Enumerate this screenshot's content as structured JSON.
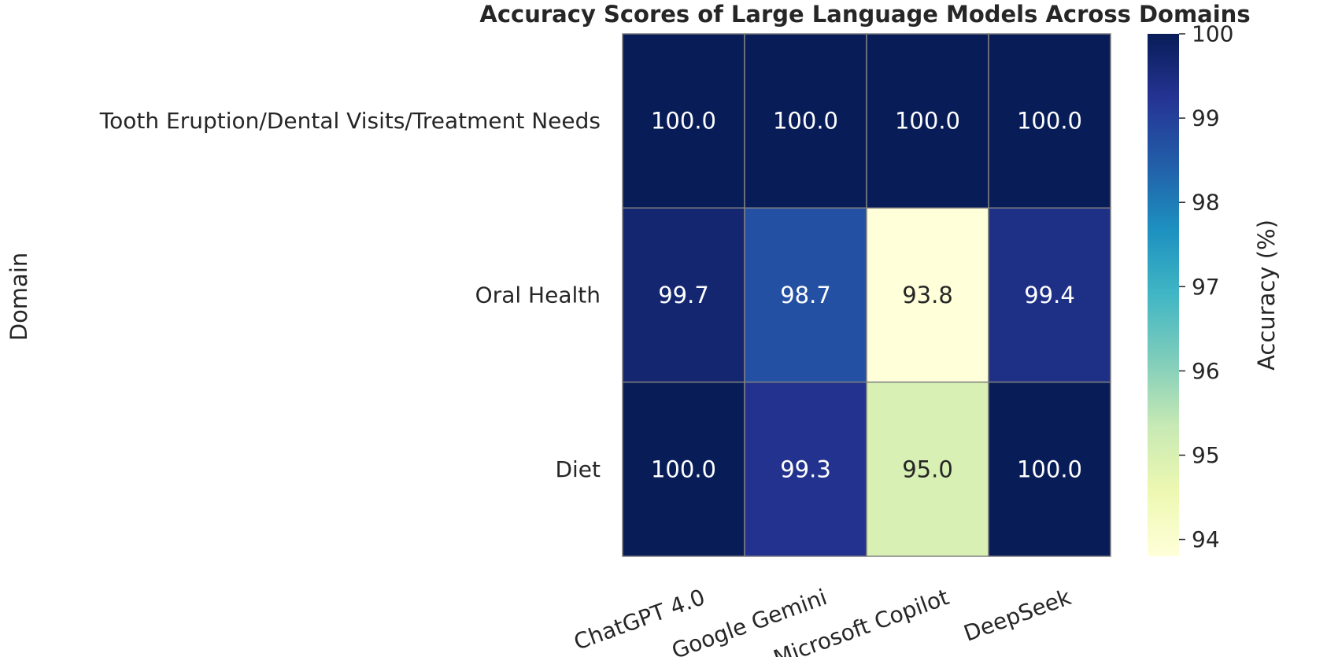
{
  "chart_data": {
    "type": "heatmap",
    "title": "Accuracy Scores of Large Language Models Across Domains",
    "xlabel": "",
    "ylabel": "Domain",
    "x_categories": [
      "ChatGPT 4.0",
      "Google Gemini",
      "Microsoft Copilot",
      "DeepSeek"
    ],
    "y_categories": [
      "Tooth Eruption/Dental Visits/Treatment Needs",
      "Oral Health",
      "Diet"
    ],
    "values": [
      [
        100.0,
        100.0,
        100.0,
        100.0
      ],
      [
        99.7,
        98.7,
        93.8,
        99.4
      ],
      [
        100.0,
        99.3,
        95.0,
        100.0
      ]
    ],
    "value_format": "0.0",
    "colormap": "YlGnBu",
    "colorbar": {
      "label": "Accuracy (%)",
      "range": [
        93.8,
        100.0
      ],
      "ticks": [
        94,
        95,
        96,
        97,
        98,
        99,
        100
      ]
    },
    "colors": {
      "cell_border": "#808080",
      "text_dark_cells": "#ffffff",
      "text_light_cells": "#262626"
    }
  }
}
